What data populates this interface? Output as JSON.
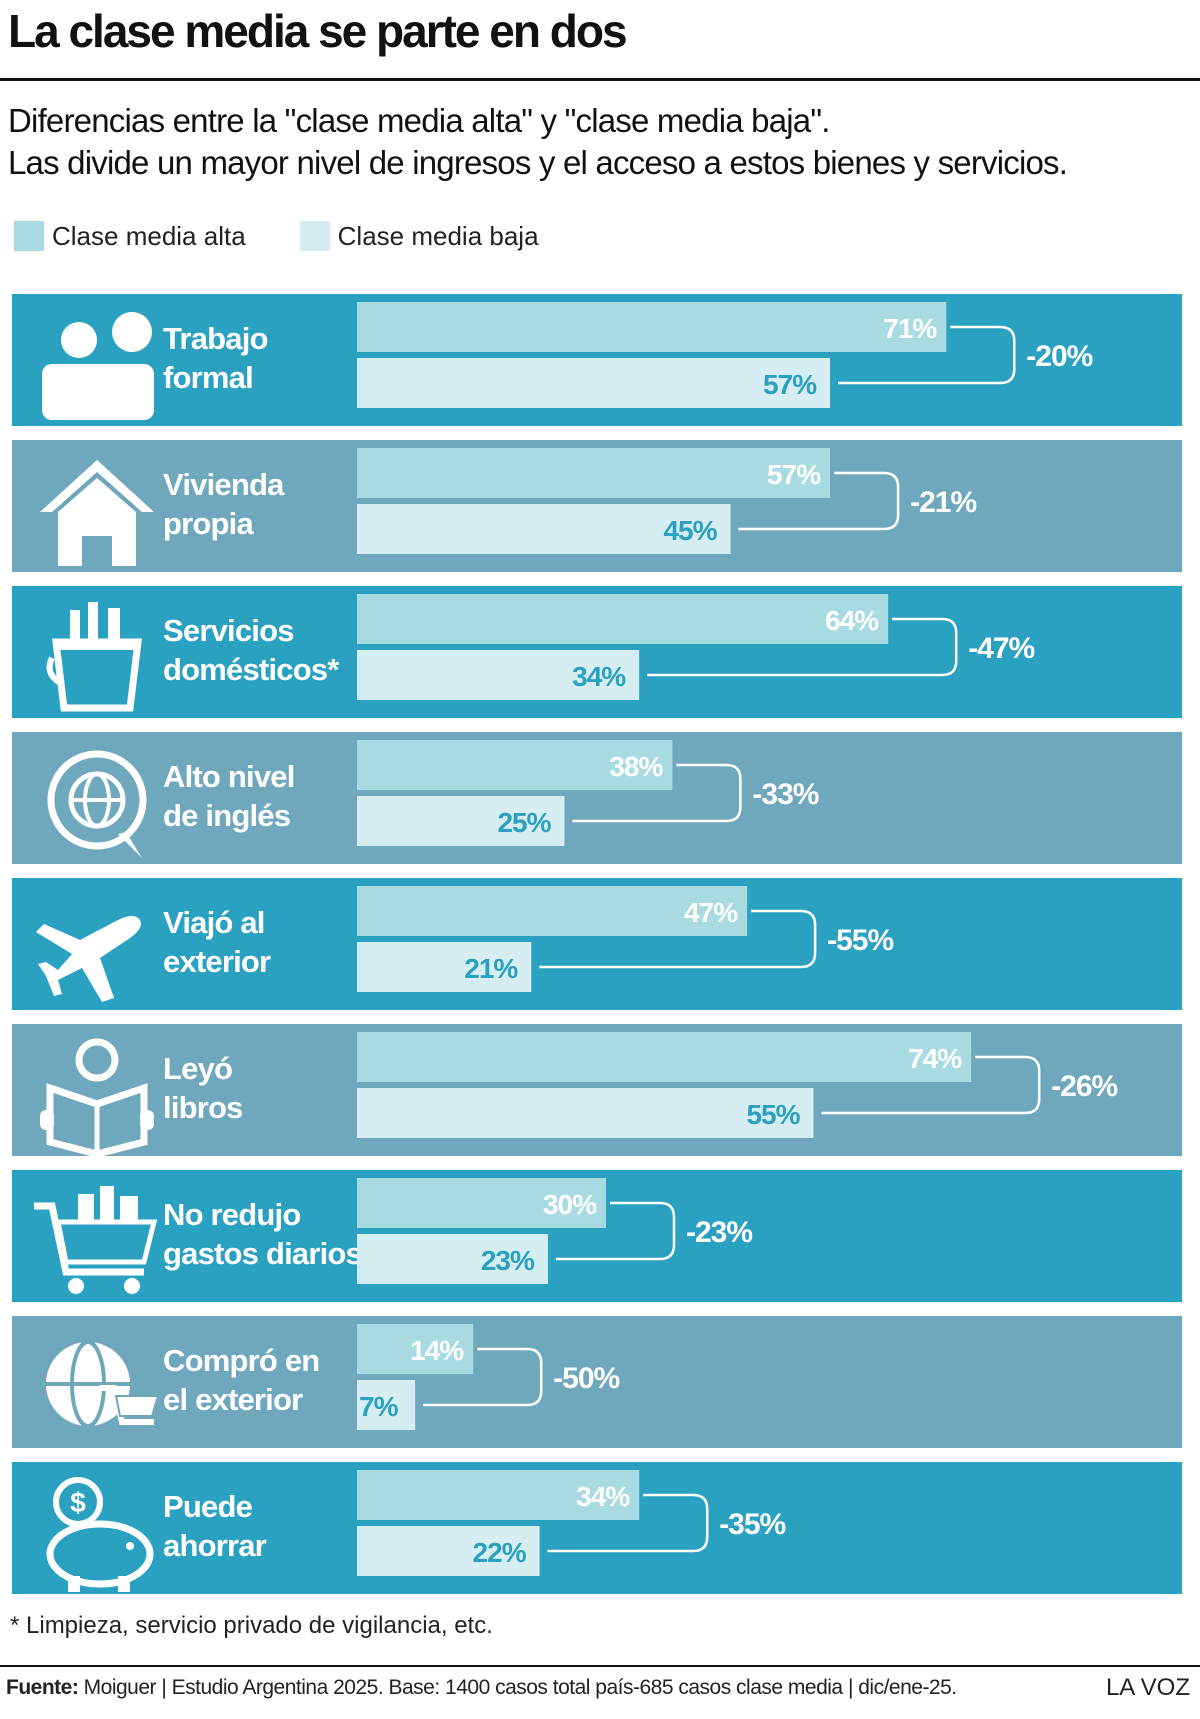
{
  "title": "La clase media se parte en dos",
  "subtitle_line1": "Diferencias entre la \"clase media alta\" y \"clase media baja\".",
  "subtitle_line2": "Las divide un mayor nivel de ingresos y el acceso a estos bienes y servicios.",
  "colors": {
    "row_a": "#2aa1c0",
    "row_b": "#6fa8bd",
    "bar_alta": "#a8dbe1",
    "bar_baja": "#d6eef2",
    "text_alta": "#ffffff",
    "text_baja": "#2aa1c0"
  },
  "footnote": "* Limpieza, servicio privado de vigilancia, etc.",
  "source_label": "Fuente:",
  "source_text": " Moiguer | Estudio Argentina 2025. Base: 1400 casos total país-685 casos clase media | dic/ene-25.",
  "brand": "LA VOZ",
  "chart_data": {
    "type": "bar",
    "orientation": "horizontal",
    "legend": [
      "Clase media alta",
      "Clase media baja"
    ],
    "legend_position": "top-left",
    "categories": [
      {
        "line1": "Trabajo",
        "line2": "formal",
        "icon": "people-icon"
      },
      {
        "line1": "Vivienda",
        "line2": "propia",
        "icon": "house-icon"
      },
      {
        "line1": "Servicios",
        "line2": "domésticos*",
        "icon": "cleaning-bucket-icon"
      },
      {
        "line1": "Alto nivel",
        "line2": "de inglés",
        "icon": "globe-speech-icon"
      },
      {
        "line1": "Viajó al",
        "line2": "exterior",
        "icon": "airplane-icon"
      },
      {
        "line1": "Leyó",
        "line2": "libros",
        "icon": "reader-book-icon"
      },
      {
        "line1": "No redujo",
        "line2": "gastos diarios",
        "icon": "shopping-cart-icon"
      },
      {
        "line1": "Compró en",
        "line2": "el exterior",
        "icon": "globe-cart-icon"
      },
      {
        "line1": "Puede",
        "line2": "ahorrar",
        "icon": "piggy-bank-icon"
      }
    ],
    "series": [
      {
        "name": "Clase media alta",
        "values": [
          71,
          57,
          64,
          38,
          47,
          74,
          30,
          14,
          34
        ]
      },
      {
        "name": "Clase media baja",
        "values": [
          57,
          45,
          34,
          25,
          21,
          55,
          23,
          7,
          22
        ]
      }
    ],
    "value_labels_alta": [
      "71%",
      "57%",
      "64%",
      "38%",
      "47%",
      "74%",
      "30%",
      "14%",
      "34%"
    ],
    "value_labels_baja": [
      "57%",
      "45%",
      "34%",
      "25%",
      "21%",
      "55%",
      "23%",
      "7%",
      "22%"
    ],
    "differences": [
      "-20%",
      "-21%",
      "-47%",
      "-33%",
      "-55%",
      "-26%",
      "-23%",
      "-50%",
      "-35%"
    ],
    "xlim": [
      0,
      100
    ],
    "grid": false
  }
}
